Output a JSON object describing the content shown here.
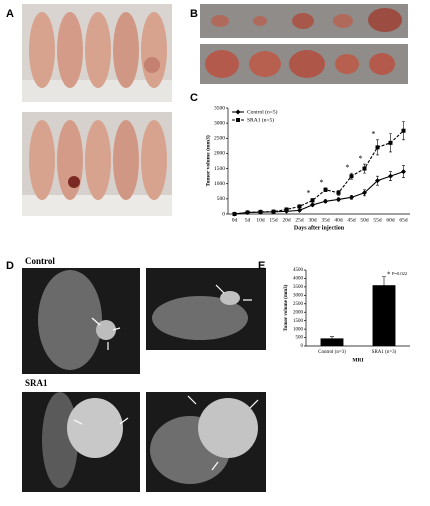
{
  "panels": {
    "a": "A",
    "b": "B",
    "c": "C",
    "d": "D",
    "e": "E"
  },
  "mri_labels": [
    "Control",
    "SRA1"
  ],
  "chart_data": [
    {
      "type": "line",
      "y_label": "Tumor volume (mm3)",
      "x_label": "Days after injection",
      "categories": [
        "0d",
        "5d",
        "10d",
        "15d",
        "20d",
        "25d",
        "30d",
        "35d",
        "40d",
        "45d",
        "50d",
        "55d",
        "60d",
        "65d"
      ],
      "series": [
        {
          "name": "Control (n=5)",
          "color": "#000000",
          "marker": "diamond",
          "values": [
            0,
            50,
            60,
            70,
            90,
            120,
            300,
            420,
            480,
            550,
            700,
            1100,
            1250,
            1400
          ],
          "errors": [
            0,
            10,
            10,
            10,
            15,
            20,
            40,
            50,
            50,
            60,
            100,
            150,
            150,
            200
          ]
        },
        {
          "name": "SRA1 (n=5)",
          "color": "#000000",
          "marker": "square",
          "dash": true,
          "values": [
            0,
            50,
            70,
            80,
            150,
            250,
            450,
            800,
            700,
            1250,
            1500,
            2200,
            2350,
            2750
          ],
          "errors": [
            0,
            10,
            10,
            15,
            30,
            40,
            60,
            60,
            80,
            100,
            150,
            250,
            300,
            300
          ]
        }
      ],
      "annotations": [
        "*",
        "*",
        "*",
        "*",
        "*"
      ],
      "ylim": [
        0,
        3500
      ],
      "yticks": [
        0,
        500,
        1000,
        1500,
        2000,
        2500,
        3000,
        3500
      ],
      "legend": "upper left"
    },
    {
      "type": "bar",
      "y_label": "Tumor volume (mm3)",
      "x_label": "MRI",
      "categories": [
        "Control (n=3)",
        "SRA1 (n=3)"
      ],
      "values": [
        450,
        3600
      ],
      "errors": [
        100,
        500
      ],
      "color": "#000000",
      "annotations": [
        "*",
        "P=0.022"
      ],
      "ylim": [
        0,
        4500
      ],
      "yticks": [
        0,
        500,
        1000,
        1500,
        2000,
        2500,
        3000,
        3500,
        4000,
        4500
      ]
    }
  ]
}
